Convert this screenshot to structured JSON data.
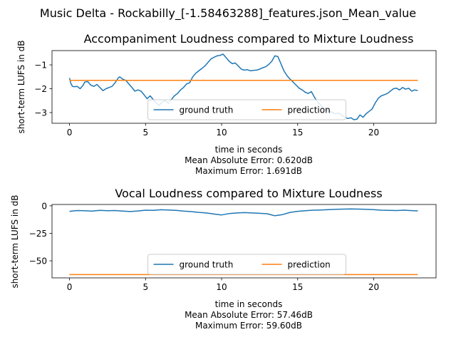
{
  "figure": {
    "suptitle": "Music Delta - Rockabilly_[-1.58463288]_features.json_Mean_value"
  },
  "colors": {
    "ground_truth": "#1f77b4",
    "prediction": "#ff7f0e"
  },
  "chart_data": [
    {
      "type": "line",
      "title": "Accompaniment Loudness compared to Mixture Loudness",
      "xlabel": "time in seconds",
      "ylabel": "short-term LUFS in dB",
      "xlim": [
        -1.15,
        24.1
      ],
      "ylim": [
        -3.45,
        -0.4
      ],
      "xticks": [
        0,
        5,
        10,
        15,
        20
      ],
      "yticks": [
        -1,
        -2,
        -3
      ],
      "legend": {
        "placement": "lower-center",
        "columns": 2
      },
      "metrics": [
        "Mean Absolute Error: 0.620dB",
        "Maximum Error: 1.691dB"
      ],
      "series": [
        {
          "name": "ground truth",
          "x": [
            0,
            0.1,
            0.2,
            0.3,
            0.5,
            0.7,
            0.9,
            1.0,
            1.2,
            1.4,
            1.6,
            1.8,
            2.0,
            2.2,
            2.4,
            2.6,
            2.8,
            3.0,
            3.2,
            3.3,
            3.5,
            3.7,
            3.9,
            4.1,
            4.3,
            4.5,
            4.7,
            4.9,
            5.1,
            5.3,
            5.5,
            5.7,
            5.9,
            6.1,
            6.3,
            6.5,
            6.7,
            6.9,
            7.1,
            7.3,
            7.5,
            7.7,
            7.9,
            8.1,
            8.3,
            8.5,
            8.7,
            8.9,
            9.1,
            9.3,
            9.5,
            9.7,
            9.9,
            10.1,
            10.3,
            10.5,
            10.7,
            10.9,
            11.1,
            11.3,
            11.5,
            11.7,
            11.9,
            12.1,
            12.3,
            12.5,
            12.7,
            12.9,
            13.1,
            13.3,
            13.5,
            13.7,
            13.9,
            14.1,
            14.3,
            14.5,
            14.7,
            14.9,
            15.1,
            15.3,
            15.5,
            15.7,
            15.9,
            16.1,
            16.3,
            16.5,
            16.7,
            16.9,
            17.1,
            17.3,
            17.5,
            17.7,
            17.9,
            18.1,
            18.3,
            18.5,
            18.7,
            18.9,
            19.1,
            19.3,
            19.5,
            19.7,
            19.9,
            20.1,
            20.3,
            20.5,
            20.7,
            20.9,
            21.1,
            21.3,
            21.5,
            21.7,
            21.9,
            22.1,
            22.3,
            22.5,
            22.7,
            22.9
          ],
          "y": [
            -1.55,
            -1.8,
            -1.9,
            -1.92,
            -1.9,
            -2.0,
            -1.85,
            -1.72,
            -1.7,
            -1.85,
            -1.9,
            -1.82,
            -1.95,
            -2.08,
            -2.0,
            -1.95,
            -1.9,
            -1.75,
            -1.55,
            -1.5,
            -1.6,
            -1.65,
            -1.8,
            -1.95,
            -2.1,
            -2.05,
            -2.1,
            -2.25,
            -2.42,
            -2.3,
            -2.45,
            -2.6,
            -2.7,
            -2.55,
            -2.5,
            -2.62,
            -2.45,
            -2.3,
            -2.2,
            -2.05,
            -1.95,
            -1.8,
            -1.75,
            -1.5,
            -1.35,
            -1.25,
            -1.15,
            -1.05,
            -0.9,
            -0.75,
            -0.68,
            -0.62,
            -0.6,
            -0.55,
            -0.7,
            -0.85,
            -0.95,
            -0.92,
            -1.05,
            -1.18,
            -1.22,
            -1.2,
            -1.25,
            -1.23,
            -1.22,
            -1.18,
            -1.12,
            -1.08,
            -0.98,
            -0.85,
            -0.62,
            -0.65,
            -0.95,
            -1.25,
            -1.45,
            -1.6,
            -1.72,
            -1.85,
            -1.98,
            -2.05,
            -2.15,
            -2.2,
            -2.12,
            -2.35,
            -2.55,
            -2.68,
            -2.82,
            -2.9,
            -2.95,
            -3.0,
            -3.05,
            -3.02,
            -3.1,
            -3.2,
            -3.25,
            -3.22,
            -3.3,
            -3.28,
            -3.1,
            -3.2,
            -3.05,
            -2.95,
            -2.85,
            -2.6,
            -2.4,
            -2.3,
            -2.25,
            -2.2,
            -2.1,
            -2.0,
            -1.98,
            -2.05,
            -1.95,
            -2.02,
            -1.98,
            -2.1,
            -2.05,
            -2.08
          ]
        },
        {
          "name": "prediction",
          "x": [
            0,
            22.9
          ],
          "y": [
            -1.65,
            -1.65
          ]
        }
      ]
    },
    {
      "type": "line",
      "title": "Vocal Loudness compared to Mixture Loudness",
      "xlabel": "time in seconds",
      "ylabel": "short-term LUFS in dB",
      "xlim": [
        -1.15,
        24.1
      ],
      "ylim": [
        -65.5,
        1.2
      ],
      "xticks": [
        0,
        5,
        10,
        15,
        20
      ],
      "yticks": [
        0,
        -25,
        -50
      ],
      "legend": {
        "placement": "lower-center",
        "columns": 2
      },
      "metrics": [
        "Mean Absolute Error: 57.46dB",
        "Maximum Error: 59.60dB"
      ],
      "series": [
        {
          "name": "ground truth",
          "x": [
            0,
            0.5,
            1,
            1.5,
            2,
            2.5,
            3,
            3.5,
            4,
            4.5,
            5,
            5.5,
            6,
            6.5,
            7,
            7.5,
            8,
            8.5,
            9,
            9.5,
            10,
            10.5,
            11,
            11.5,
            12,
            12.5,
            13,
            13.5,
            14,
            14.5,
            15,
            15.5,
            16,
            16.5,
            17,
            17.5,
            18,
            18.5,
            19,
            19.5,
            20,
            20.5,
            21,
            21.5,
            22,
            22.5,
            22.9
          ],
          "y": [
            -5.0,
            -4.3,
            -4.5,
            -4.8,
            -4.2,
            -4.5,
            -4.3,
            -4.8,
            -5.2,
            -4.7,
            -4.0,
            -4.1,
            -3.6,
            -3.8,
            -4.2,
            -4.8,
            -5.3,
            -6.0,
            -6.5,
            -7.5,
            -8.3,
            -7.0,
            -6.5,
            -6.2,
            -6.5,
            -6.8,
            -7.2,
            -9.0,
            -8.0,
            -6.0,
            -5.0,
            -4.5,
            -4.0,
            -3.8,
            -3.5,
            -3.2,
            -3.0,
            -2.8,
            -3.0,
            -3.2,
            -3.5,
            -4.0,
            -4.2,
            -4.3,
            -4.0,
            -4.4,
            -4.6
          ]
        },
        {
          "name": "prediction",
          "x": [
            0,
            22.9
          ],
          "y": [
            -62.5,
            -62.5
          ]
        }
      ]
    }
  ]
}
